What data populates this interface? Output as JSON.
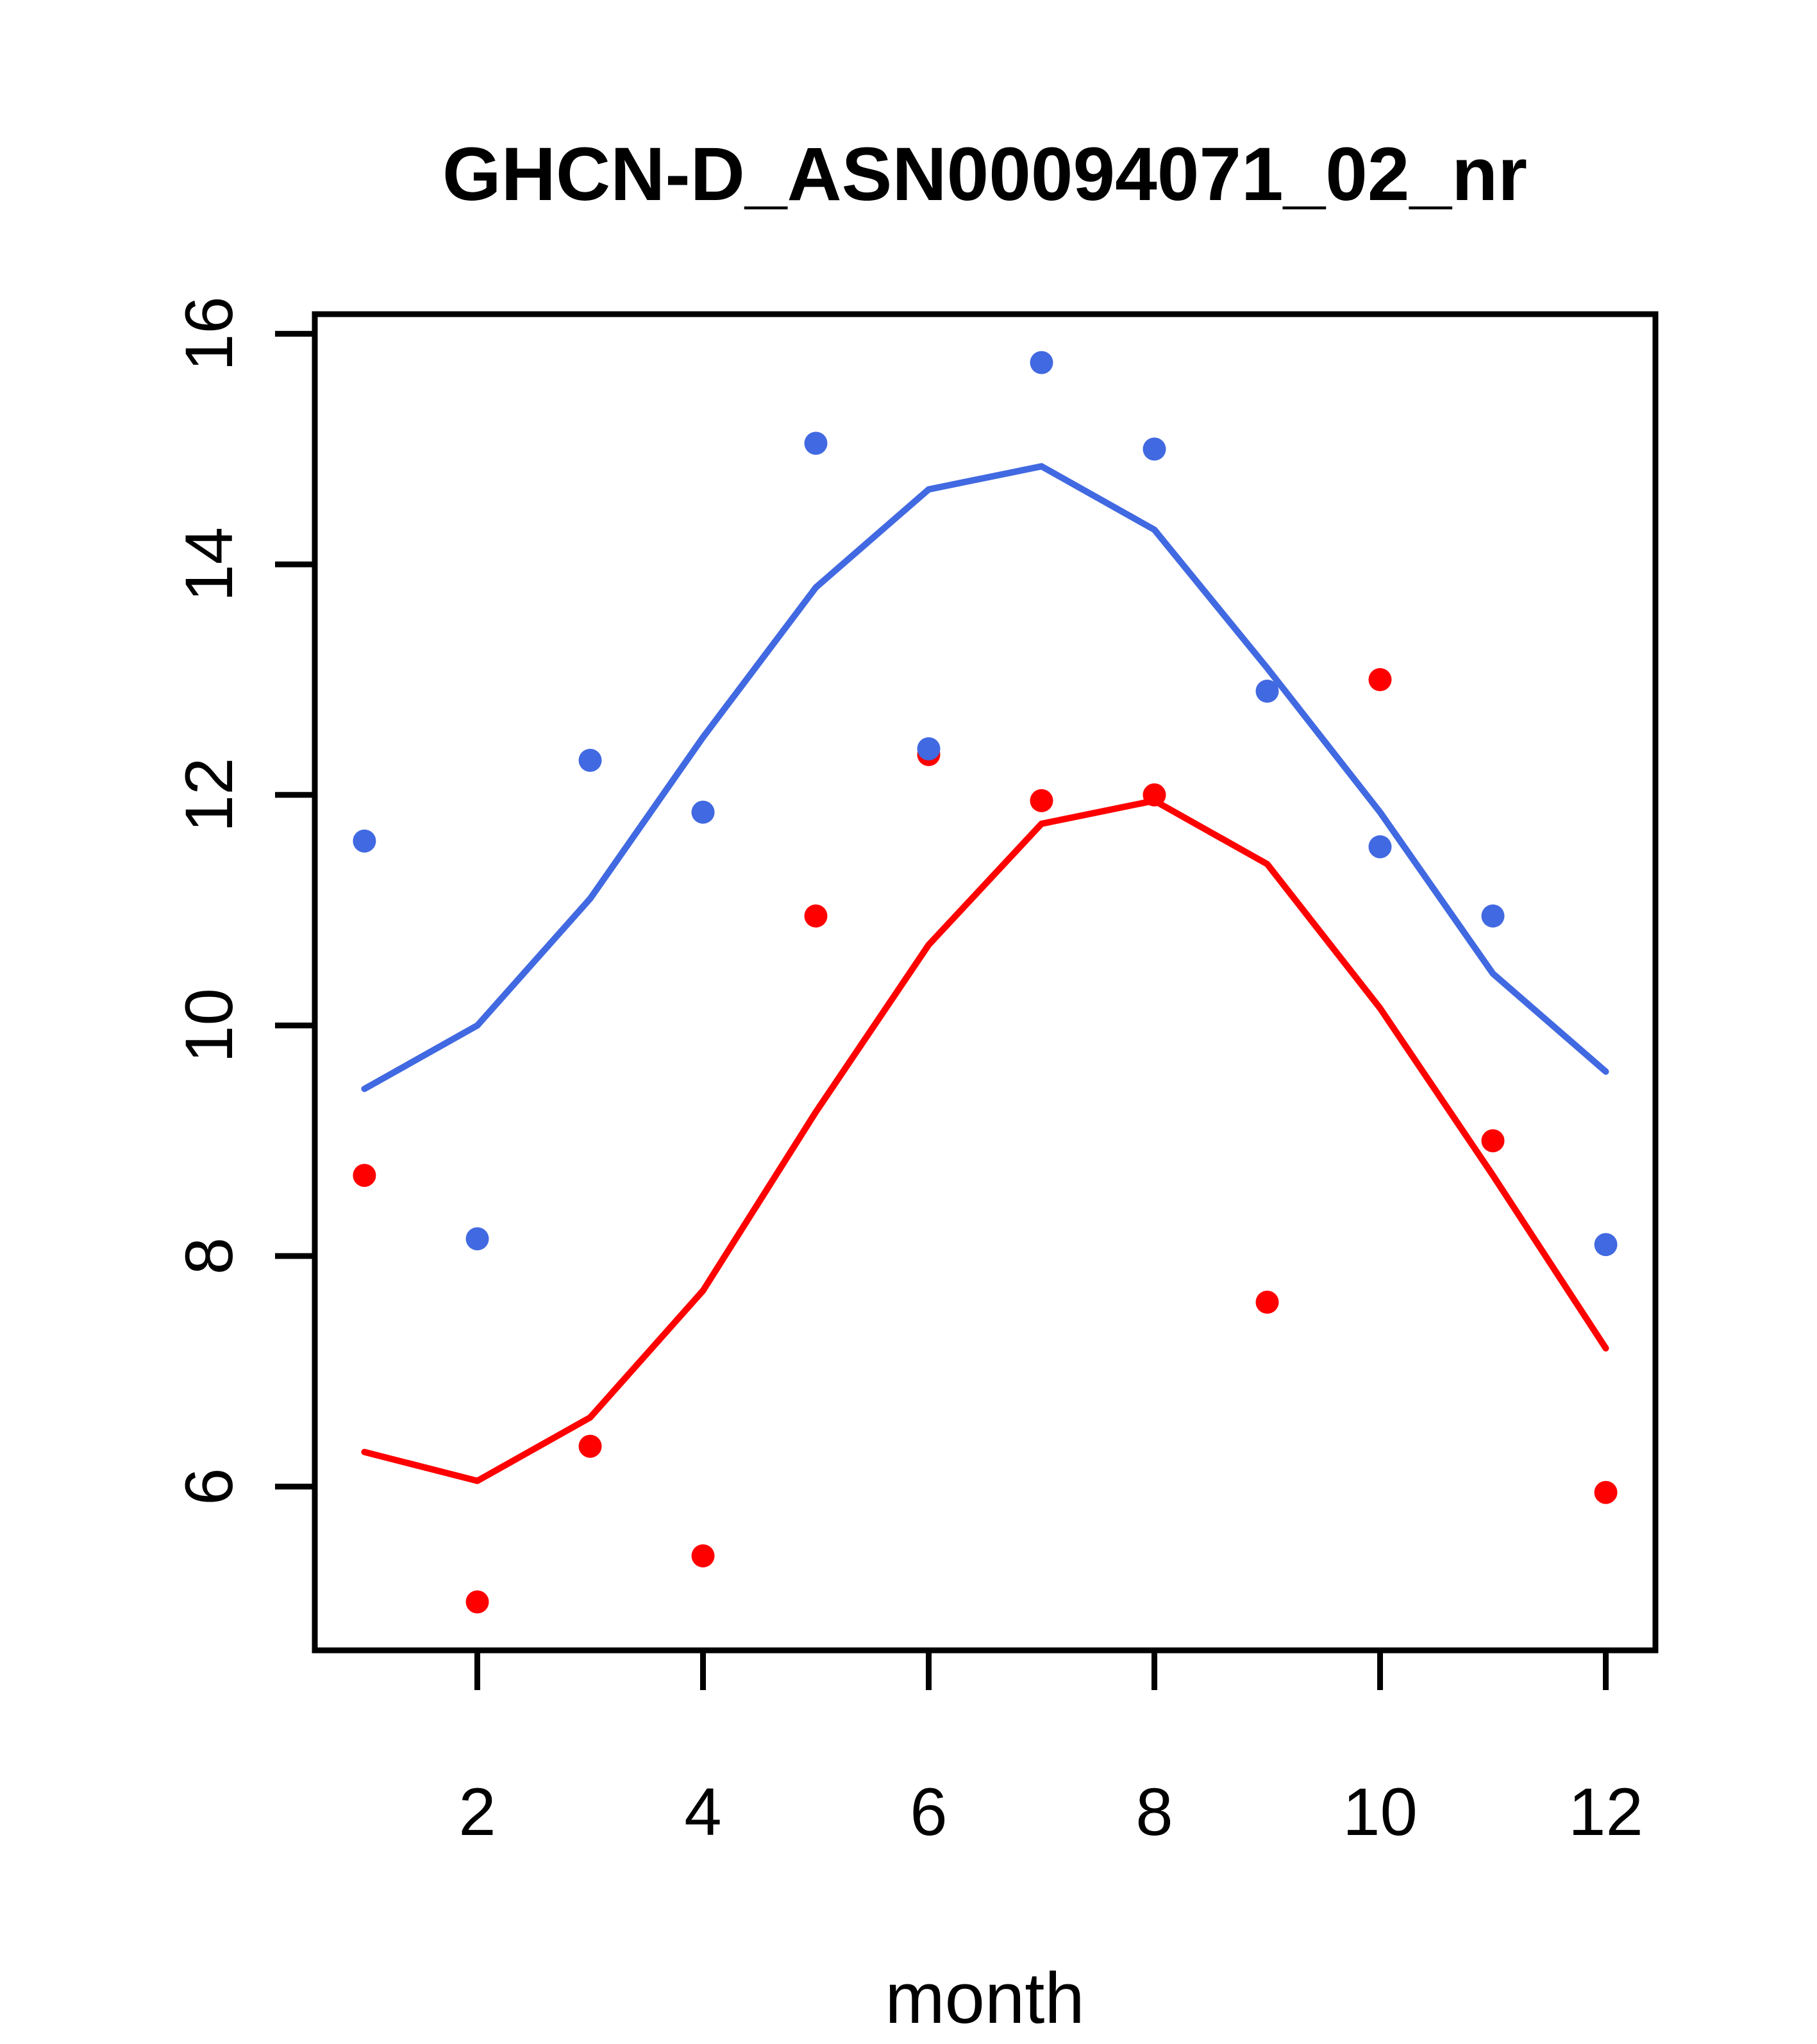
{
  "title": "GHCN-D_ASN00094071_02_nr",
  "chart_data": {
    "type": "scatter",
    "title": "GHCN-D_ASN00094071_02_nr",
    "xlabel": "month",
    "ylabel": "",
    "x": [
      1,
      2,
      3,
      4,
      5,
      6,
      7,
      8,
      9,
      10,
      11,
      12
    ],
    "x_ticks": [
      2,
      4,
      6,
      8,
      10,
      12
    ],
    "y_ticks": [
      6,
      8,
      10,
      12,
      14,
      16
    ],
    "xlim": [
      0.56,
      12.44
    ],
    "ylim": [
      4.58,
      16.17
    ],
    "grid": false,
    "legend": null,
    "colors": {
      "blue": "#4169E1",
      "red": "#FF0000",
      "axis": "#000000"
    },
    "series": [
      {
        "name": "blue-line",
        "type": "line",
        "color": "#4169E1",
        "values": [
          9.45,
          10.0,
          11.1,
          12.5,
          13.8,
          14.65,
          14.85,
          14.3,
          13.1,
          11.85,
          10.45,
          9.6
        ]
      },
      {
        "name": "red-line",
        "type": "line",
        "color": "#FF0000",
        "values": [
          6.3,
          6.05,
          6.6,
          7.7,
          9.25,
          10.7,
          11.75,
          11.95,
          11.4,
          10.15,
          8.7,
          7.2
        ]
      },
      {
        "name": "red-points",
        "type": "points",
        "color": "#FF0000",
        "values": [
          8.7,
          5.0,
          6.35,
          5.4,
          10.95,
          12.35,
          11.95,
          12.0,
          7.6,
          13.0,
          9.0,
          5.95
        ]
      },
      {
        "name": "blue-points",
        "type": "points",
        "color": "#4169E1",
        "values": [
          11.6,
          8.15,
          12.3,
          11.85,
          15.05,
          12.4,
          15.75,
          15.0,
          12.9,
          11.55,
          10.95,
          8.1
        ]
      }
    ]
  }
}
